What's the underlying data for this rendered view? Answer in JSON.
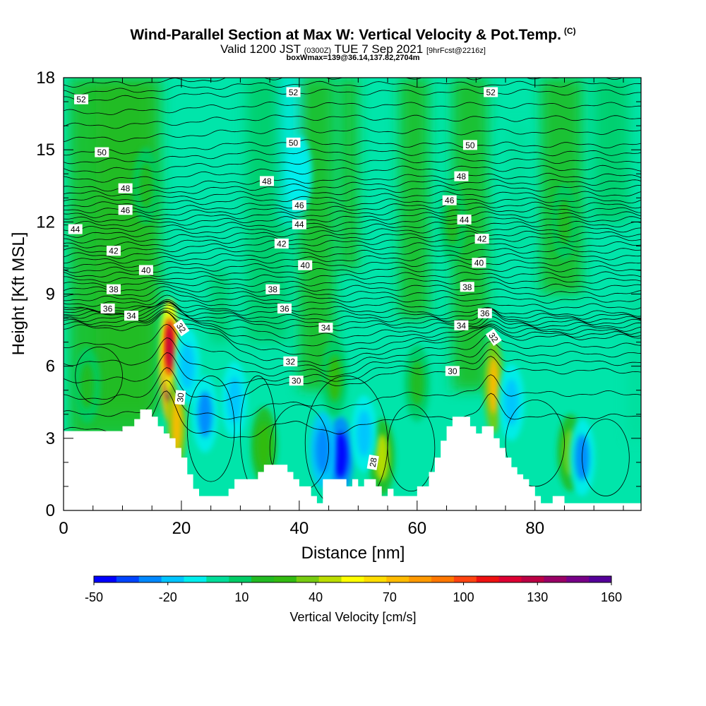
{
  "header": {
    "title": "Wind-Parallel Section at Max W: Vertical Velocity & Pot.Temp.",
    "copyright": "(C)",
    "valid_prefix": "Valid 1200 JST",
    "valid_utc": "(0300Z)",
    "valid_date": "TUE 7 Sep 2021",
    "forecast_info": "[9hrFcst@2216z]",
    "box_info": "boxWmax=139@36.14,137.82,2704m"
  },
  "chart_data": {
    "type": "heatmap",
    "title": "Wind-Parallel Section at Max W: Vertical Velocity & Pot.Temp.",
    "xlabel": "Distance [nm]",
    "ylabel": "Height [Kft MSL]",
    "xlim": [
      0,
      98
    ],
    "ylim": [
      0,
      18
    ],
    "x_ticks": [
      0,
      20,
      40,
      60,
      80
    ],
    "y_ticks": [
      0,
      3,
      6,
      9,
      12,
      15,
      18
    ],
    "colorbar": {
      "label": "Vertical Velocity [cm/s]",
      "tick_labels": [
        "-50",
        "-20",
        "10",
        "40",
        "70",
        "100",
        "130",
        "160"
      ],
      "colors": [
        "#0000ff",
        "#0044ff",
        "#0088ff",
        "#00c4ff",
        "#00eeee",
        "#00dd99",
        "#00cc66",
        "#22bb22",
        "#33bb11",
        "#77cc11",
        "#bbdd00",
        "#ffff00",
        "#ffdd00",
        "#ffbb00",
        "#ff9900",
        "#ff7700",
        "#ff4411",
        "#ee1111",
        "#dd0033",
        "#bb0044",
        "#990066",
        "#770088",
        "#550099"
      ]
    },
    "terrain_kft": [
      [
        0,
        3.3
      ],
      [
        5,
        3.3
      ],
      [
        10,
        3.3
      ],
      [
        10,
        3.5
      ],
      [
        12,
        3.5
      ],
      [
        12,
        3.8
      ],
      [
        13,
        3.8
      ],
      [
        13,
        4.2
      ],
      [
        15,
        4.2
      ],
      [
        15,
        3.9
      ],
      [
        16,
        3.9
      ],
      [
        16,
        3.5
      ],
      [
        17,
        3.5
      ],
      [
        17,
        3.2
      ],
      [
        18,
        3.2
      ],
      [
        18,
        3.0
      ],
      [
        19,
        3.0
      ],
      [
        19,
        2.6
      ],
      [
        20,
        2.6
      ],
      [
        20,
        2.2
      ],
      [
        21,
        2.2
      ],
      [
        21,
        1.5
      ],
      [
        22,
        1.5
      ],
      [
        22,
        0.9
      ],
      [
        23,
        0.9
      ],
      [
        23,
        0.6
      ],
      [
        28,
        0.6
      ],
      [
        28,
        0.9
      ],
      [
        29,
        0.9
      ],
      [
        29,
        1.3
      ],
      [
        33,
        1.3
      ],
      [
        33,
        1.6
      ],
      [
        34,
        1.6
      ],
      [
        34,
        1.9
      ],
      [
        38,
        1.9
      ],
      [
        38,
        1.6
      ],
      [
        39,
        1.6
      ],
      [
        39,
        1.3
      ],
      [
        40,
        1.3
      ],
      [
        40,
        1.0
      ],
      [
        42,
        1.0
      ],
      [
        42,
        0.6
      ],
      [
        43,
        0.6
      ],
      [
        43,
        0.3
      ],
      [
        44,
        0.3
      ],
      [
        44,
        1.3
      ],
      [
        48,
        1.3
      ],
      [
        48,
        1.0
      ],
      [
        49,
        1.0
      ],
      [
        49,
        1.3
      ],
      [
        50,
        1.3
      ],
      [
        50,
        1.0
      ],
      [
        51,
        1.0
      ],
      [
        51,
        1.3
      ],
      [
        53,
        1.3
      ],
      [
        53,
        1.0
      ],
      [
        54,
        1.0
      ],
      [
        54,
        0.6
      ],
      [
        55,
        0.6
      ],
      [
        55,
        0.9
      ],
      [
        56,
        0.9
      ],
      [
        56,
        0.6
      ],
      [
        60,
        0.6
      ],
      [
        60,
        1.0
      ],
      [
        62,
        1.0
      ],
      [
        62,
        1.6
      ],
      [
        63,
        1.6
      ],
      [
        63,
        2.2
      ],
      [
        64,
        2.2
      ],
      [
        64,
        2.9
      ],
      [
        65,
        2.9
      ],
      [
        65,
        3.5
      ],
      [
        66,
        3.5
      ],
      [
        66,
        3.9
      ],
      [
        69,
        3.9
      ],
      [
        69,
        3.5
      ],
      [
        70,
        3.5
      ],
      [
        70,
        3.2
      ],
      [
        71,
        3.2
      ],
      [
        71,
        3.5
      ],
      [
        73,
        3.5
      ],
      [
        73,
        3.0
      ],
      [
        74,
        3.0
      ],
      [
        74,
        2.6
      ],
      [
        75,
        2.6
      ],
      [
        75,
        2.2
      ],
      [
        76,
        2.2
      ],
      [
        76,
        1.8
      ],
      [
        77,
        1.8
      ],
      [
        77,
        1.5
      ],
      [
        78,
        1.5
      ],
      [
        78,
        1.3
      ],
      [
        79,
        1.3
      ],
      [
        79,
        1.0
      ],
      [
        80,
        1.0
      ],
      [
        80,
        0.6
      ],
      [
        81,
        0.6
      ],
      [
        81,
        0.3
      ],
      [
        83,
        0.3
      ],
      [
        83,
        0.6
      ],
      [
        85,
        0.6
      ],
      [
        85,
        0.3
      ],
      [
        98,
        0.3
      ]
    ],
    "w_blobs_cmps": [
      {
        "x": 18,
        "y": 5.7,
        "value": 145
      },
      {
        "x": 18,
        "y": 6.8,
        "value": 110
      },
      {
        "x": 19.2,
        "y": 3.6,
        "value": 75
      },
      {
        "x": 73,
        "y": 5.2,
        "value": 70
      },
      {
        "x": 54,
        "y": 2.2,
        "value": 45
      },
      {
        "x": 86,
        "y": 2.4,
        "value": 40
      },
      {
        "x": 34,
        "y": 2.7,
        "value": 30
      },
      {
        "x": 47,
        "y": 2.3,
        "value": -50
      },
      {
        "x": 44,
        "y": 2.5,
        "value": -30
      },
      {
        "x": 24,
        "y": 4.0,
        "value": -25
      },
      {
        "x": 29,
        "y": 4.6,
        "value": -20
      },
      {
        "x": 88,
        "y": 2.2,
        "value": -25
      },
      {
        "x": 76,
        "y": 4.5,
        "value": -18
      },
      {
        "x": 51,
        "y": 3.2,
        "value": -15
      },
      {
        "x": 21,
        "y": 6.0,
        "value": -15
      },
      {
        "x": 40,
        "y": 14.0,
        "value": -12
      },
      {
        "x": 14,
        "y": 13.5,
        "value": 20
      },
      {
        "x": 4,
        "y": 5.2,
        "value": 22
      },
      {
        "x": 85,
        "y": 12.0,
        "value": 22
      },
      {
        "x": 66,
        "y": 12.0,
        "value": 20
      },
      {
        "x": 46,
        "y": 5.5,
        "value": 25
      },
      {
        "x": 60,
        "y": 5.3,
        "value": 18
      }
    ],
    "theta_contour_labels": [
      {
        "x": 3,
        "y": 17.1,
        "label": "52"
      },
      {
        "x": 39,
        "y": 17.4,
        "label": "52"
      },
      {
        "x": 72.5,
        "y": 17.4,
        "label": "52"
      },
      {
        "x": 6.5,
        "y": 14.9,
        "label": "50"
      },
      {
        "x": 39,
        "y": 15.3,
        "label": "50"
      },
      {
        "x": 69,
        "y": 15.2,
        "label": "50"
      },
      {
        "x": 10.5,
        "y": 13.4,
        "label": "48"
      },
      {
        "x": 34.5,
        "y": 13.7,
        "label": "48"
      },
      {
        "x": 67.5,
        "y": 13.9,
        "label": "48"
      },
      {
        "x": 10.5,
        "y": 12.5,
        "label": "46"
      },
      {
        "x": 40,
        "y": 12.7,
        "label": "46"
      },
      {
        "x": 65.5,
        "y": 12.9,
        "label": "46"
      },
      {
        "x": 2,
        "y": 11.7,
        "label": "44"
      },
      {
        "x": 40,
        "y": 11.9,
        "label": "44"
      },
      {
        "x": 68,
        "y": 12.1,
        "label": "44"
      },
      {
        "x": 8.5,
        "y": 10.8,
        "label": "42"
      },
      {
        "x": 37,
        "y": 11.1,
        "label": "42"
      },
      {
        "x": 71,
        "y": 11.3,
        "label": "42"
      },
      {
        "x": 14,
        "y": 10.0,
        "label": "40"
      },
      {
        "x": 41,
        "y": 10.2,
        "label": "40"
      },
      {
        "x": 70.5,
        "y": 10.3,
        "label": "40"
      },
      {
        "x": 8.5,
        "y": 9.2,
        "label": "38"
      },
      {
        "x": 35.5,
        "y": 9.2,
        "label": "38"
      },
      {
        "x": 68.5,
        "y": 9.3,
        "label": "38"
      },
      {
        "x": 7.5,
        "y": 8.4,
        "label": "36"
      },
      {
        "x": 37.5,
        "y": 8.4,
        "label": "36"
      },
      {
        "x": 71.5,
        "y": 8.2,
        "label": "36"
      },
      {
        "x": 11.5,
        "y": 8.1,
        "label": "34"
      },
      {
        "x": 44.5,
        "y": 7.6,
        "label": "34"
      },
      {
        "x": 67.5,
        "y": 7.7,
        "label": "34"
      },
      {
        "x": 20,
        "y": 7.6,
        "label": "32"
      },
      {
        "x": 38.5,
        "y": 6.2,
        "label": "32"
      },
      {
        "x": 73,
        "y": 7.2,
        "label": "32"
      },
      {
        "x": 39.5,
        "y": 5.4,
        "label": "30"
      },
      {
        "x": 66,
        "y": 5.8,
        "label": "30"
      },
      {
        "x": 19.8,
        "y": 4.7,
        "label": "30"
      },
      {
        "x": 52.5,
        "y": 2.0,
        "label": "28"
      }
    ],
    "grid": false,
    "legend": "bottom"
  }
}
